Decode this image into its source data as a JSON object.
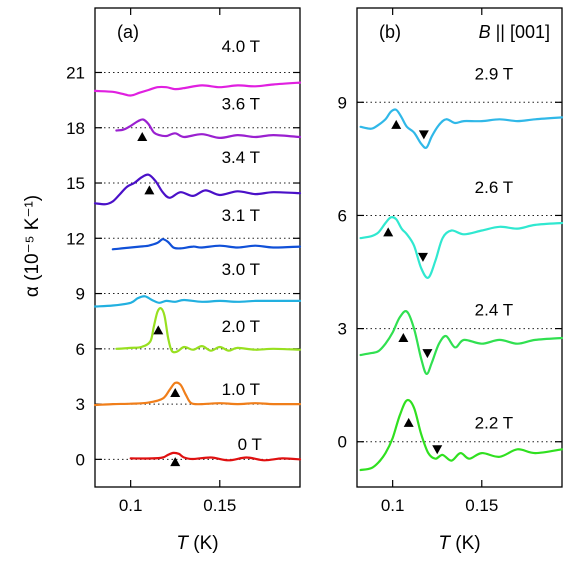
{
  "chart_data": [
    {
      "type": "line",
      "panel": "(a)",
      "header": "",
      "xlabel_var": "T",
      "xlabel_unit": " (K)",
      "ylabel": "α (10⁻⁵ K⁻¹)",
      "xlim": [
        0.08,
        0.195
      ],
      "ylim": [
        -1.5,
        24.5
      ],
      "xticks": [
        0.1,
        0.15
      ],
      "xtick_labels": [
        "0.1",
        "0.15"
      ],
      "yticks": [
        0,
        3,
        6,
        9,
        12,
        15,
        18,
        21
      ],
      "ytick_labels": [
        "0",
        "3",
        "6",
        "9",
        "12",
        "15",
        "18",
        "21"
      ],
      "series": [
        {
          "name": "0 T",
          "color": "#e01010",
          "offset": 0,
          "label_pos": [
            0.16,
            0.5
          ],
          "x": [
            0.1,
            0.112,
            0.118,
            0.121,
            0.124,
            0.127,
            0.13,
            0.135,
            0.145,
            0.155,
            0.165,
            0.175,
            0.185,
            0.195
          ],
          "y": [
            0.05,
            0.05,
            0.1,
            0.25,
            0.35,
            0.3,
            0.1,
            0.02,
            0.1,
            -0.05,
            0.1,
            -0.05,
            0.05,
            0.0
          ],
          "up": [
            [
              0.125,
              -0.15
            ]
          ],
          "down": []
        },
        {
          "name": "1.0 T",
          "color": "#f07e1a",
          "offset": 3,
          "label_pos": [
            0.151,
            3.5
          ],
          "x": [
            0.08,
            0.09,
            0.1,
            0.11,
            0.118,
            0.122,
            0.125,
            0.128,
            0.131,
            0.134,
            0.14,
            0.15,
            0.16,
            0.17,
            0.18,
            0.195
          ],
          "y": [
            2.95,
            3.0,
            3.02,
            3.08,
            3.3,
            3.8,
            4.15,
            4.05,
            3.5,
            3.05,
            3.0,
            3.05,
            3.0,
            3.05,
            3.0,
            3.0
          ],
          "up": [
            [
              0.125,
              3.6
            ]
          ],
          "down": []
        },
        {
          "name": "2.0 T",
          "color": "#98e020",
          "offset": 6,
          "label_pos": [
            0.151,
            6.9
          ],
          "x": [
            0.092,
            0.1,
            0.106,
            0.111,
            0.113,
            0.115,
            0.117,
            0.119,
            0.121,
            0.123,
            0.126,
            0.13,
            0.135,
            0.14,
            0.145,
            0.15,
            0.155,
            0.16,
            0.17,
            0.18,
            0.195
          ],
          "y": [
            6.0,
            6.05,
            6.1,
            6.4,
            7.2,
            8.0,
            8.2,
            7.8,
            6.6,
            5.9,
            5.85,
            6.1,
            5.95,
            6.15,
            5.9,
            6.1,
            5.9,
            6.05,
            5.95,
            6.0,
            5.95
          ],
          "up": [
            [
              0.1155,
              7.0
            ]
          ],
          "down": []
        },
        {
          "name": "3.0 T",
          "color": "#22b0e0",
          "offset": 9,
          "label_pos": [
            0.151,
            10.0
          ],
          "x": [
            0.08,
            0.09,
            0.1,
            0.104,
            0.108,
            0.112,
            0.116,
            0.12,
            0.125,
            0.13,
            0.14,
            0.15,
            0.16,
            0.17,
            0.18,
            0.195
          ],
          "y": [
            8.3,
            8.35,
            8.5,
            8.75,
            8.85,
            8.65,
            8.5,
            8.6,
            8.55,
            8.65,
            8.55,
            8.6,
            8.55,
            8.6,
            8.6,
            8.6
          ],
          "up": [],
          "down": []
        },
        {
          "name": "3.1 T",
          "color": "#1050d8",
          "offset": 12,
          "label_pos": [
            0.151,
            12.95
          ],
          "x": [
            0.09,
            0.095,
            0.1,
            0.105,
            0.11,
            0.115,
            0.118,
            0.121,
            0.124,
            0.128,
            0.135,
            0.14,
            0.15,
            0.16,
            0.17,
            0.18,
            0.195
          ],
          "y": [
            11.4,
            11.45,
            11.5,
            11.55,
            11.6,
            11.75,
            11.95,
            11.8,
            11.5,
            11.45,
            11.55,
            11.5,
            11.6,
            11.5,
            11.6,
            11.5,
            11.55
          ],
          "up": [],
          "down": []
        },
        {
          "name": "3.4 T",
          "color": "#4a10c8",
          "offset": 15,
          "label_pos": [
            0.151,
            16.1
          ],
          "x": [
            0.08,
            0.086,
            0.09,
            0.094,
            0.098,
            0.102,
            0.106,
            0.11,
            0.114,
            0.118,
            0.122,
            0.128,
            0.135,
            0.142,
            0.15,
            0.16,
            0.17,
            0.18,
            0.195
          ],
          "y": [
            13.9,
            13.85,
            14.0,
            14.4,
            14.8,
            15.0,
            15.3,
            15.45,
            15.1,
            14.5,
            14.2,
            14.5,
            14.3,
            14.6,
            14.35,
            14.55,
            14.4,
            14.5,
            14.45
          ],
          "up": [
            [
              0.1105,
              14.6
            ]
          ],
          "down": []
        },
        {
          "name": "3.6 T",
          "color": "#9a20d0",
          "offset": 18,
          "label_pos": [
            0.151,
            19.0
          ],
          "x": [
            0.092,
            0.096,
            0.1,
            0.104,
            0.107,
            0.11,
            0.113,
            0.116,
            0.12,
            0.125,
            0.13,
            0.14,
            0.15,
            0.16,
            0.17,
            0.18,
            0.195
          ],
          "y": [
            17.85,
            17.9,
            18.1,
            18.35,
            18.45,
            18.2,
            17.75,
            17.6,
            17.55,
            17.7,
            17.5,
            17.65,
            17.45,
            17.6,
            17.5,
            17.6,
            17.5
          ],
          "up": [
            [
              0.1065,
              17.5
            ]
          ],
          "down": []
        },
        {
          "name": "4.0 T",
          "color": "#e020e0",
          "offset": 21,
          "label_pos": [
            0.151,
            22.1
          ],
          "x": [
            0.08,
            0.09,
            0.095,
            0.1,
            0.105,
            0.11,
            0.115,
            0.12,
            0.125,
            0.13,
            0.14,
            0.15,
            0.16,
            0.17,
            0.18,
            0.195
          ],
          "y": [
            20.0,
            19.95,
            19.85,
            19.75,
            19.9,
            20.05,
            20.2,
            20.2,
            20.1,
            20.15,
            20.3,
            20.2,
            20.3,
            20.25,
            20.35,
            20.45
          ],
          "up": [],
          "down": []
        }
      ]
    },
    {
      "type": "line",
      "panel": "(b)",
      "header_var": "B",
      "header_rest": " || [001]",
      "xlabel_var": "T",
      "xlabel_unit": " (K)",
      "xlim": [
        0.08,
        0.195
      ],
      "ylim": [
        -1.2,
        11.5
      ],
      "xticks": [
        0.1,
        0.15
      ],
      "xtick_labels": [
        "0.1",
        "0.15"
      ],
      "yticks": [
        0,
        3,
        6,
        9
      ],
      "ytick_labels": [
        "0",
        "3",
        "6",
        "9"
      ],
      "series": [
        {
          "name": "2.2 T",
          "color": "#30e020",
          "offset": 0,
          "label_pos": [
            0.146,
            0.35
          ],
          "x": [
            0.082,
            0.088,
            0.092,
            0.096,
            0.1,
            0.104,
            0.108,
            0.112,
            0.116,
            0.12,
            0.124,
            0.128,
            0.133,
            0.138,
            0.143,
            0.15,
            0.16,
            0.17,
            0.18,
            0.195
          ],
          "y": [
            -0.75,
            -0.7,
            -0.55,
            -0.3,
            0.1,
            0.7,
            1.1,
            0.9,
            0.2,
            -0.3,
            -0.45,
            -0.35,
            -0.5,
            -0.3,
            -0.45,
            -0.3,
            -0.4,
            -0.2,
            -0.3,
            -0.2
          ],
          "up": [
            [
              0.109,
              0.5
            ]
          ],
          "down": [
            [
              0.125,
              -0.2
            ]
          ]
        },
        {
          "name": "2.4 T",
          "color": "#30e050",
          "offset": 3,
          "label_pos": [
            0.146,
            3.35
          ],
          "x": [
            0.082,
            0.088,
            0.092,
            0.096,
            0.1,
            0.104,
            0.108,
            0.112,
            0.116,
            0.119,
            0.122,
            0.126,
            0.13,
            0.135,
            0.14,
            0.15,
            0.16,
            0.17,
            0.18,
            0.195
          ],
          "y": [
            2.3,
            2.35,
            2.4,
            2.6,
            2.9,
            3.3,
            3.45,
            3.0,
            2.2,
            1.8,
            2.1,
            2.6,
            2.8,
            2.5,
            2.7,
            2.6,
            2.7,
            2.6,
            2.7,
            2.75
          ],
          "up": [
            [
              0.106,
              2.75
            ]
          ],
          "down": [
            [
              0.1195,
              2.35
            ]
          ]
        },
        {
          "name": "2.6 T",
          "color": "#30e8d0",
          "offset": 6,
          "label_pos": [
            0.146,
            6.6
          ],
          "x": [
            0.082,
            0.088,
            0.092,
            0.096,
            0.099,
            0.102,
            0.105,
            0.108,
            0.112,
            0.116,
            0.12,
            0.124,
            0.128,
            0.133,
            0.14,
            0.15,
            0.16,
            0.17,
            0.18,
            0.195
          ],
          "y": [
            5.4,
            5.45,
            5.55,
            5.8,
            5.95,
            5.9,
            5.65,
            5.5,
            5.2,
            4.6,
            4.35,
            4.8,
            5.4,
            5.6,
            5.5,
            5.6,
            5.7,
            5.65,
            5.75,
            5.8
          ],
          "up": [
            [
              0.0975,
              5.55
            ]
          ],
          "down": [
            [
              0.117,
              4.9
            ]
          ]
        },
        {
          "name": "2.9 T",
          "color": "#30b8e8",
          "offset": 9,
          "label_pos": [
            0.146,
            9.6
          ],
          "x": [
            0.082,
            0.088,
            0.092,
            0.096,
            0.099,
            0.102,
            0.105,
            0.108,
            0.112,
            0.116,
            0.119,
            0.122,
            0.126,
            0.13,
            0.135,
            0.14,
            0.15,
            0.16,
            0.17,
            0.18,
            0.195
          ],
          "y": [
            8.35,
            8.3,
            8.4,
            8.55,
            8.75,
            8.8,
            8.6,
            8.35,
            8.2,
            7.9,
            7.8,
            8.1,
            8.4,
            8.55,
            8.45,
            8.5,
            8.5,
            8.55,
            8.5,
            8.55,
            8.6
          ],
          "up": [
            [
              0.102,
              8.4
            ]
          ],
          "down": [
            [
              0.1175,
              8.15
            ]
          ]
        }
      ]
    }
  ]
}
